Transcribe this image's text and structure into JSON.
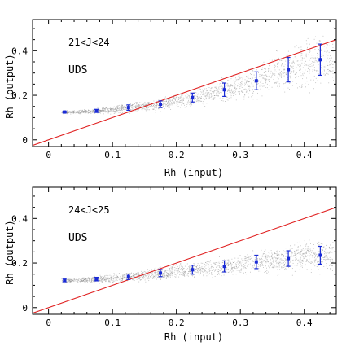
{
  "chart_data": [
    {
      "type": "scatter",
      "annotations": [
        "21<J<24",
        "UDS"
      ],
      "xlabel": "Rh (input)",
      "ylabel": "Rh (output)",
      "xlim": [
        -0.025,
        0.45
      ],
      "ylim": [
        -0.03,
        0.54
      ],
      "x_ticks": [
        "0",
        "0.1",
        "0.2",
        "0.3",
        "0.4"
      ],
      "y_ticks": [
        "0",
        "0.2",
        "0.4"
      ],
      "reference_line": {
        "name": "",
        "slope": 1,
        "intercept": 0
      },
      "series": [
        {
          "x": [
            0.025,
            0.075,
            0.125,
            0.175,
            0.225,
            0.275,
            0.325,
            0.375,
            0.425
          ],
          "y": [
            0.125,
            0.13,
            0.145,
            0.16,
            0.19,
            0.225,
            0.265,
            0.315,
            0.36
          ],
          "yerr": [
            0.004,
            0.007,
            0.012,
            0.015,
            0.02,
            0.03,
            0.04,
            0.055,
            0.07
          ]
        }
      ]
    },
    {
      "type": "scatter",
      "annotations": [
        "24<J<25",
        "UDS"
      ],
      "xlabel": "Rh (input)",
      "ylabel": "Rh (output)",
      "xlim": [
        -0.025,
        0.45
      ],
      "ylim": [
        -0.03,
        0.54
      ],
      "x_ticks": [
        "0",
        "0.1",
        "0.2",
        "0.3",
        "0.4"
      ],
      "y_ticks": [
        "0",
        "0.2",
        "0.4"
      ],
      "reference_line": {
        "name": "",
        "slope": 1,
        "intercept": 0
      },
      "series": [
        {
          "x": [
            0.025,
            0.075,
            0.125,
            0.175,
            0.225,
            0.275,
            0.325,
            0.375,
            0.425
          ],
          "y": [
            0.122,
            0.128,
            0.138,
            0.155,
            0.17,
            0.185,
            0.205,
            0.22,
            0.235
          ],
          "yerr": [
            0.006,
            0.008,
            0.012,
            0.016,
            0.02,
            0.025,
            0.03,
            0.035,
            0.04
          ]
        }
      ]
    }
  ],
  "colors": {
    "reference_line": "#e02020",
    "points": "#1a2bd6",
    "cloud": "#8a8a8a",
    "frame": "#000000"
  }
}
